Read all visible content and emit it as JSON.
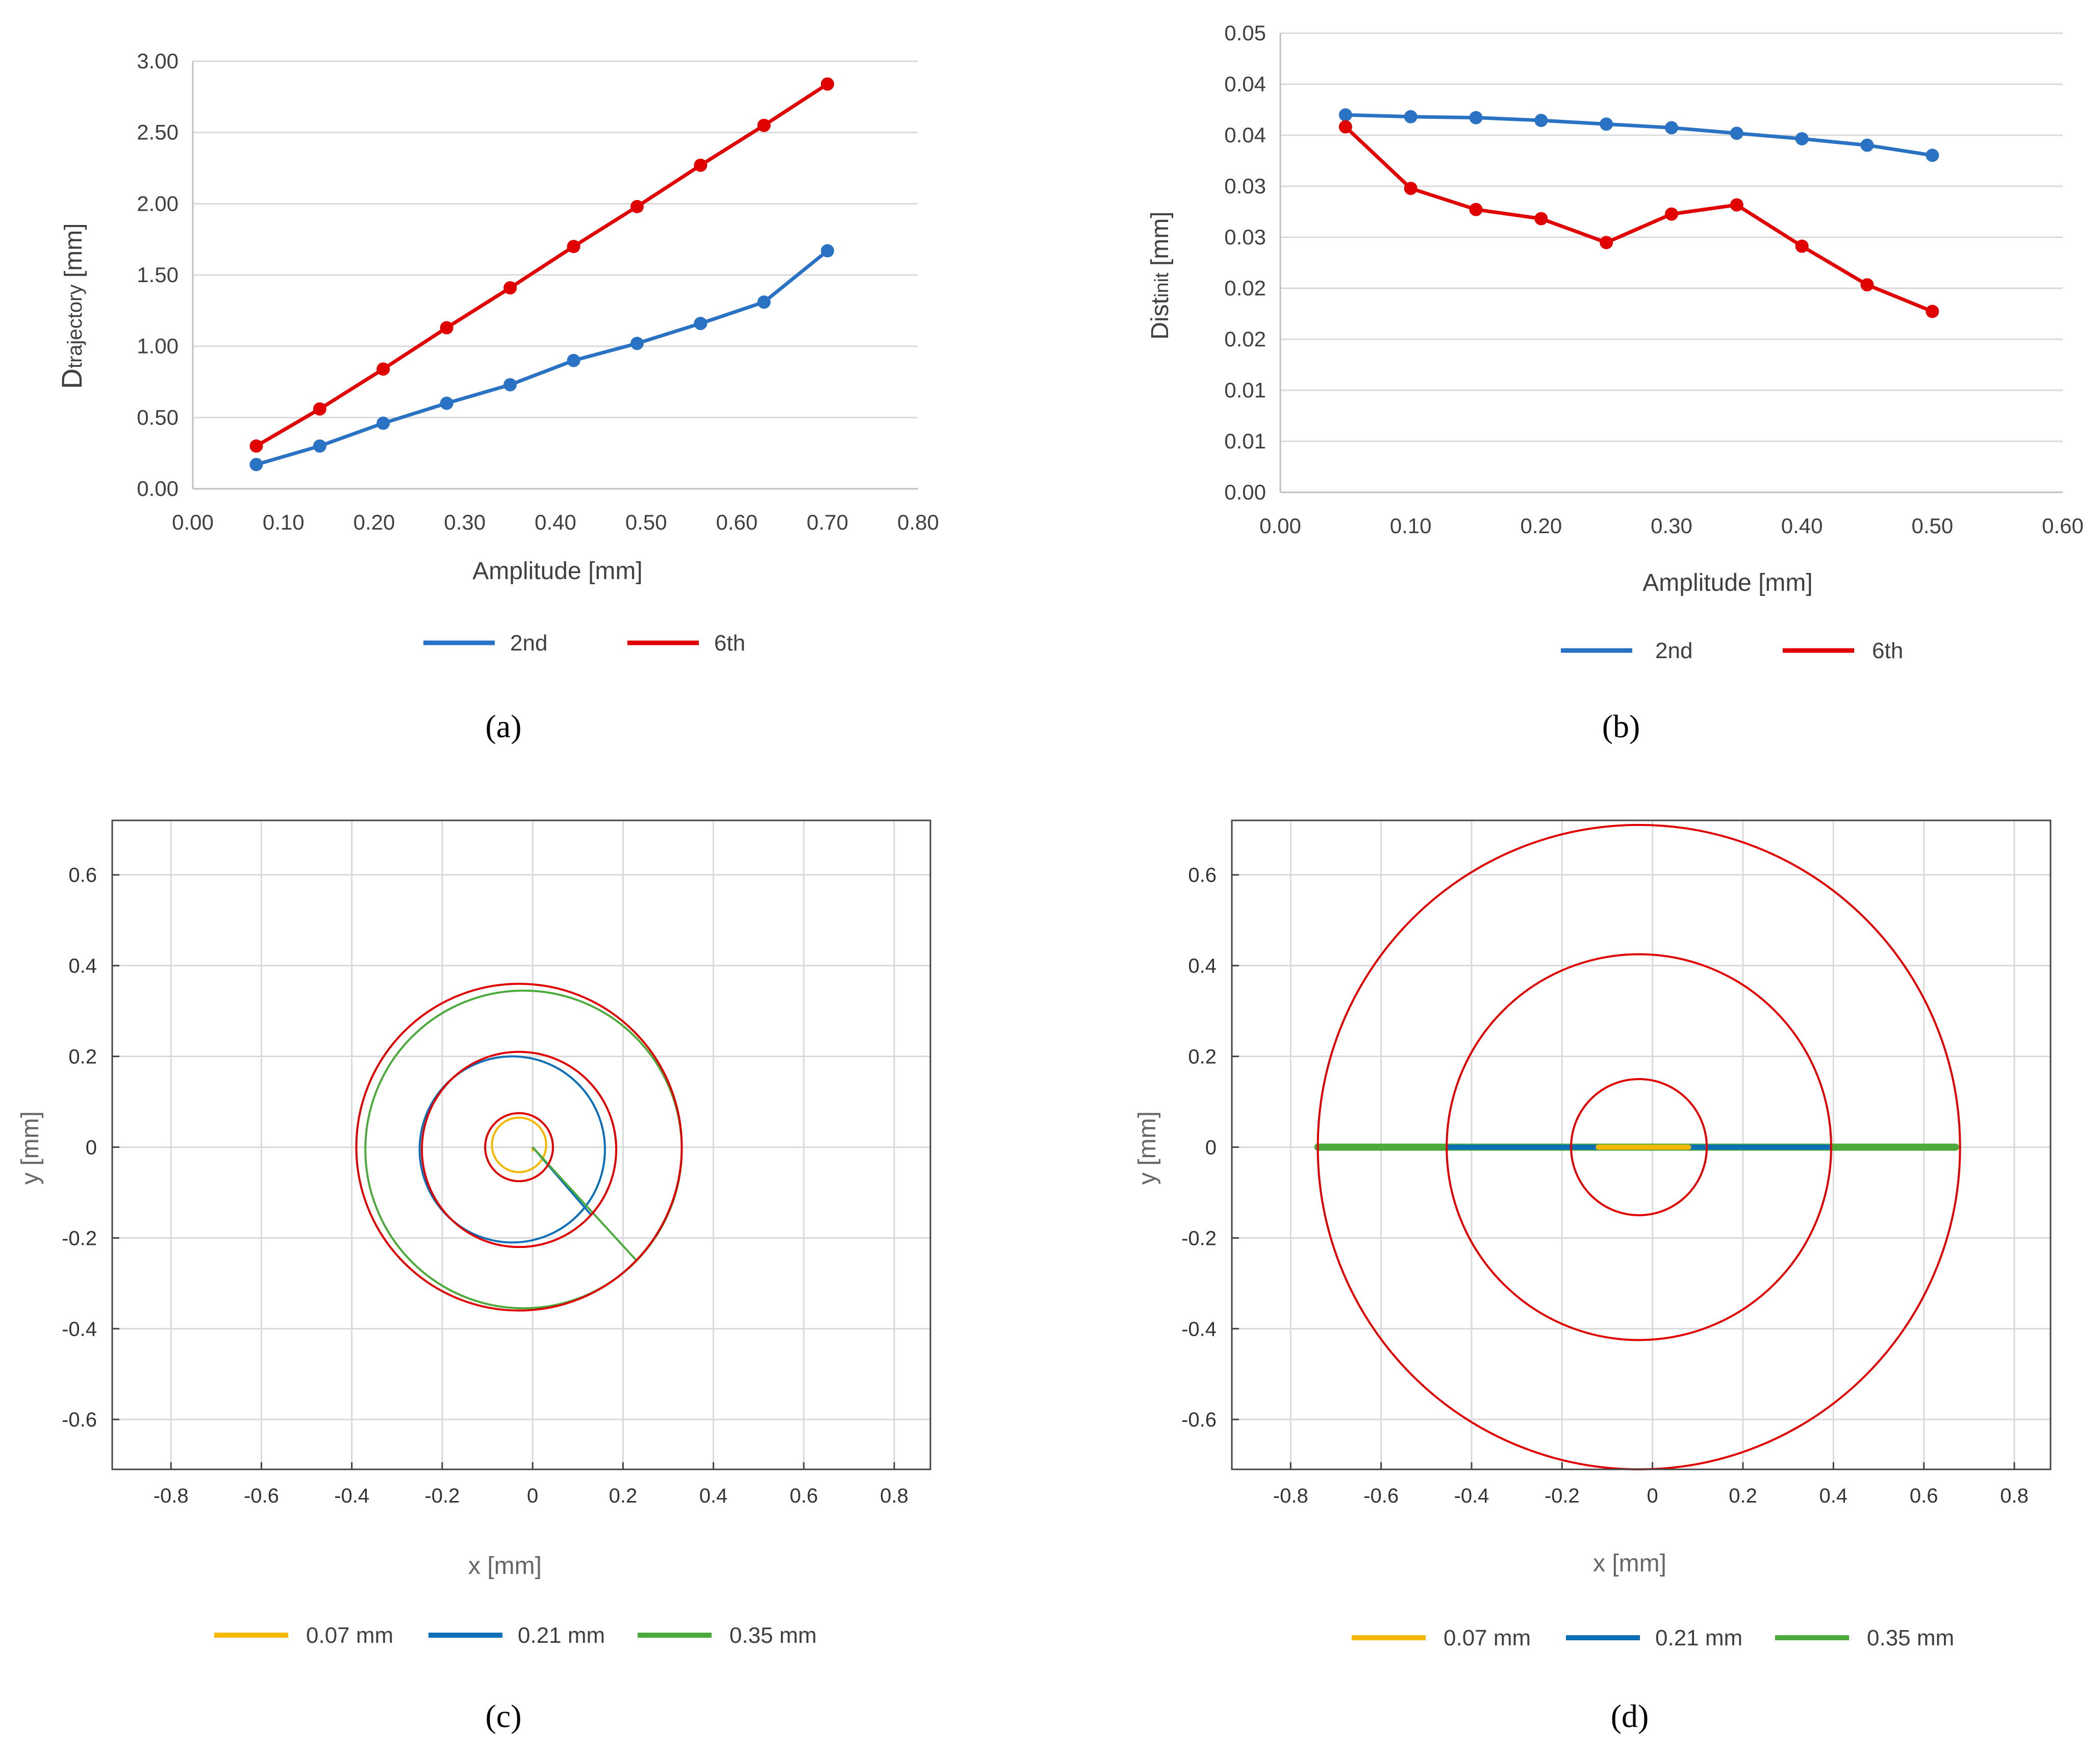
{
  "panels": [
    {
      "id": "a",
      "label_text": "(a)",
      "letter": "a"
    },
    {
      "id": "b",
      "label_text": "(b)",
      "letter": "b"
    },
    {
      "id": "c",
      "label_text": "(c)",
      "letter": "c"
    },
    {
      "id": "d",
      "label_text": "(d)",
      "letter": "d"
    }
  ],
  "colors": {
    "blue": "#2a72c4",
    "red": "#e00000",
    "yellow": "#f5b800",
    "lblue": "#0b6fb8",
    "green": "#4caa3c",
    "grid": "#d9d9d9"
  },
  "chart_data": [
    {
      "panel": "a",
      "type": "line",
      "ylabel_main": "D",
      "ylabel_sub": "trajectory",
      "ylabel_unit": " [mm]",
      "xlabel": "Amplitude [mm]",
      "xlim": [
        0,
        0.8
      ],
      "ylim": [
        0,
        3.0
      ],
      "xticks": [
        "0.00",
        "0.10",
        "0.20",
        "0.30",
        "0.40",
        "0.50",
        "0.60",
        "0.70",
        "0.80"
      ],
      "yticks": [
        "0.00",
        "0.50",
        "1.00",
        "1.50",
        "2.00",
        "2.50",
        "3.00"
      ],
      "x": [
        0.07,
        0.14,
        0.21,
        0.28,
        0.35,
        0.42,
        0.49,
        0.56,
        0.63,
        0.7
      ],
      "series": [
        {
          "name": "2nd",
          "color": "#2a72c4",
          "values": [
            0.17,
            0.3,
            0.46,
            0.6,
            0.73,
            0.9,
            1.02,
            1.16,
            1.31,
            1.67
          ]
        },
        {
          "name": "6th",
          "color": "#e00000",
          "values": [
            0.3,
            0.56,
            0.84,
            1.13,
            1.41,
            1.7,
            1.98,
            2.27,
            2.55,
            2.84
          ]
        }
      ]
    },
    {
      "panel": "b",
      "type": "line",
      "ylabel_main": "Dist",
      "ylabel_sub": "init",
      "ylabel_unit": " [mm]",
      "xlabel": "Amplitude [mm]",
      "xlim": [
        0,
        0.6
      ],
      "ylim": [
        0,
        0.05
      ],
      "xticks": [
        "0.00",
        "0.10",
        "0.20",
        "0.30",
        "0.40",
        "0.50",
        "0.60"
      ],
      "yticks": [
        "0.00",
        "0.01",
        "0.01",
        "0.02",
        "0.02",
        "0.03",
        "0.03",
        "0.04",
        "0.04",
        "0.05"
      ],
      "x": [
        0.05,
        0.1,
        0.15,
        0.2,
        0.25,
        0.3,
        0.35,
        0.4,
        0.45,
        0.5
      ],
      "series": [
        {
          "name": "2nd",
          "color": "#2a72c4",
          "values": [
            0.0411,
            0.0409,
            0.0408,
            0.0405,
            0.0401,
            0.0397,
            0.0391,
            0.0385,
            0.0378,
            0.0367
          ]
        },
        {
          "name": "6th",
          "color": "#e00000",
          "values": [
            0.0398,
            0.0331,
            0.0308,
            0.0298,
            0.0272,
            0.0303,
            0.0313,
            0.0268,
            0.0226,
            0.0197
          ]
        }
      ]
    },
    {
      "panel": "c",
      "type": "line",
      "xlabel": "x [mm]",
      "ylabel": "y [mm]",
      "xlim": [
        -0.93,
        0.88
      ],
      "ylim": [
        -0.71,
        0.72
      ],
      "xticks": [
        "-0.8",
        "-0.6",
        "-0.4",
        "-0.2",
        "0",
        "0.2",
        "0.4",
        "0.6",
        "0.8"
      ],
      "yticks": [
        "-0.6",
        "-0.4",
        "-0.2",
        "0",
        "0.2",
        "0.4",
        "0.6"
      ],
      "legend": [
        "0.07 mm",
        "0.21 mm",
        "0.35 mm"
      ],
      "reference_circles": [
        {
          "cx": -0.03,
          "cy": 0,
          "r": 0.075
        },
        {
          "cx": -0.03,
          "cy": -0.005,
          "r": 0.215
        },
        {
          "cx": -0.03,
          "cy": 0,
          "r": 0.36
        }
      ],
      "trajectories": [
        {
          "name": "0.07 mm",
          "center": [
            -0.03,
            0.005
          ],
          "radius": 0.06,
          "spoke_end": [
            0.0,
            -0.01
          ]
        },
        {
          "name": "0.21 mm",
          "center": [
            -0.045,
            -0.005
          ],
          "radius": 0.205,
          "spoke_end": [
            0.13,
            -0.15
          ]
        },
        {
          "name": "0.35 mm",
          "center": [
            -0.02,
            -0.005
          ],
          "radius": 0.35,
          "spoke_end": [
            0.23,
            -0.25
          ]
        }
      ]
    },
    {
      "panel": "d",
      "type": "line",
      "xlabel": "x [mm]",
      "ylabel": "y [mm]",
      "xlim": [
        -0.93,
        0.88
      ],
      "ylim": [
        -0.71,
        0.72
      ],
      "xticks": [
        "-0.8",
        "-0.6",
        "-0.4",
        "-0.2",
        "0",
        "0.2",
        "0.4",
        "0.6",
        "0.8"
      ],
      "yticks": [
        "-0.6",
        "-0.4",
        "-0.2",
        "0",
        "0.2",
        "0.4",
        "0.6"
      ],
      "legend": [
        "0.07 mm",
        "0.21 mm",
        "0.35 mm"
      ],
      "reference_circles": [
        {
          "cx": -0.03,
          "cy": 0,
          "r": 0.15
        },
        {
          "cx": -0.03,
          "cy": 0,
          "r": 0.425
        },
        {
          "cx": -0.03,
          "cy": 0,
          "r": 0.71
        }
      ],
      "trajectories": [
        {
          "name": "0.07 mm",
          "x_range": [
            -0.12,
            0.08
          ]
        },
        {
          "name": "0.21 mm",
          "x_range": [
            -0.45,
            0.39
          ]
        },
        {
          "name": "0.35 mm",
          "x_range": [
            -0.74,
            0.67
          ]
        }
      ]
    }
  ]
}
